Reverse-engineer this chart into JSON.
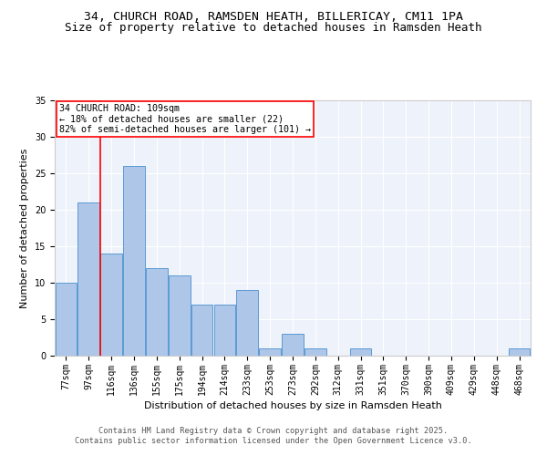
{
  "title1": "34, CHURCH ROAD, RAMSDEN HEATH, BILLERICAY, CM11 1PA",
  "title2": "Size of property relative to detached houses in Ramsden Heath",
  "xlabel": "Distribution of detached houses by size in Ramsden Heath",
  "ylabel": "Number of detached properties",
  "categories": [
    "77sqm",
    "97sqm",
    "116sqm",
    "136sqm",
    "155sqm",
    "175sqm",
    "194sqm",
    "214sqm",
    "233sqm",
    "253sqm",
    "273sqm",
    "292sqm",
    "312sqm",
    "331sqm",
    "351sqm",
    "370sqm",
    "390sqm",
    "409sqm",
    "429sqm",
    "448sqm",
    "468sqm"
  ],
  "values": [
    10,
    21,
    14,
    26,
    12,
    11,
    7,
    7,
    9,
    1,
    3,
    1,
    0,
    1,
    0,
    0,
    0,
    0,
    0,
    0,
    1
  ],
  "bar_color": "#aec6e8",
  "bar_edge_color": "#5b9bd5",
  "annotation_text": "34 CHURCH ROAD: 109sqm\n← 18% of detached houses are smaller (22)\n82% of semi-detached houses are larger (101) →",
  "vline_x": 1.5,
  "vline_color": "red",
  "ylim": [
    0,
    35
  ],
  "yticks": [
    0,
    5,
    10,
    15,
    20,
    25,
    30,
    35
  ],
  "bg_color": "#eef2fa",
  "grid_color": "#ffffff",
  "footer": "Contains HM Land Registry data © Crown copyright and database right 2025.\nContains public sector information licensed under the Open Government Licence v3.0.",
  "title_fontsize": 9.5,
  "subtitle_fontsize": 9.0,
  "axis_label_fontsize": 8.0,
  "tick_fontsize": 7.0,
  "footer_fontsize": 6.2,
  "annotation_fontsize": 7.2
}
